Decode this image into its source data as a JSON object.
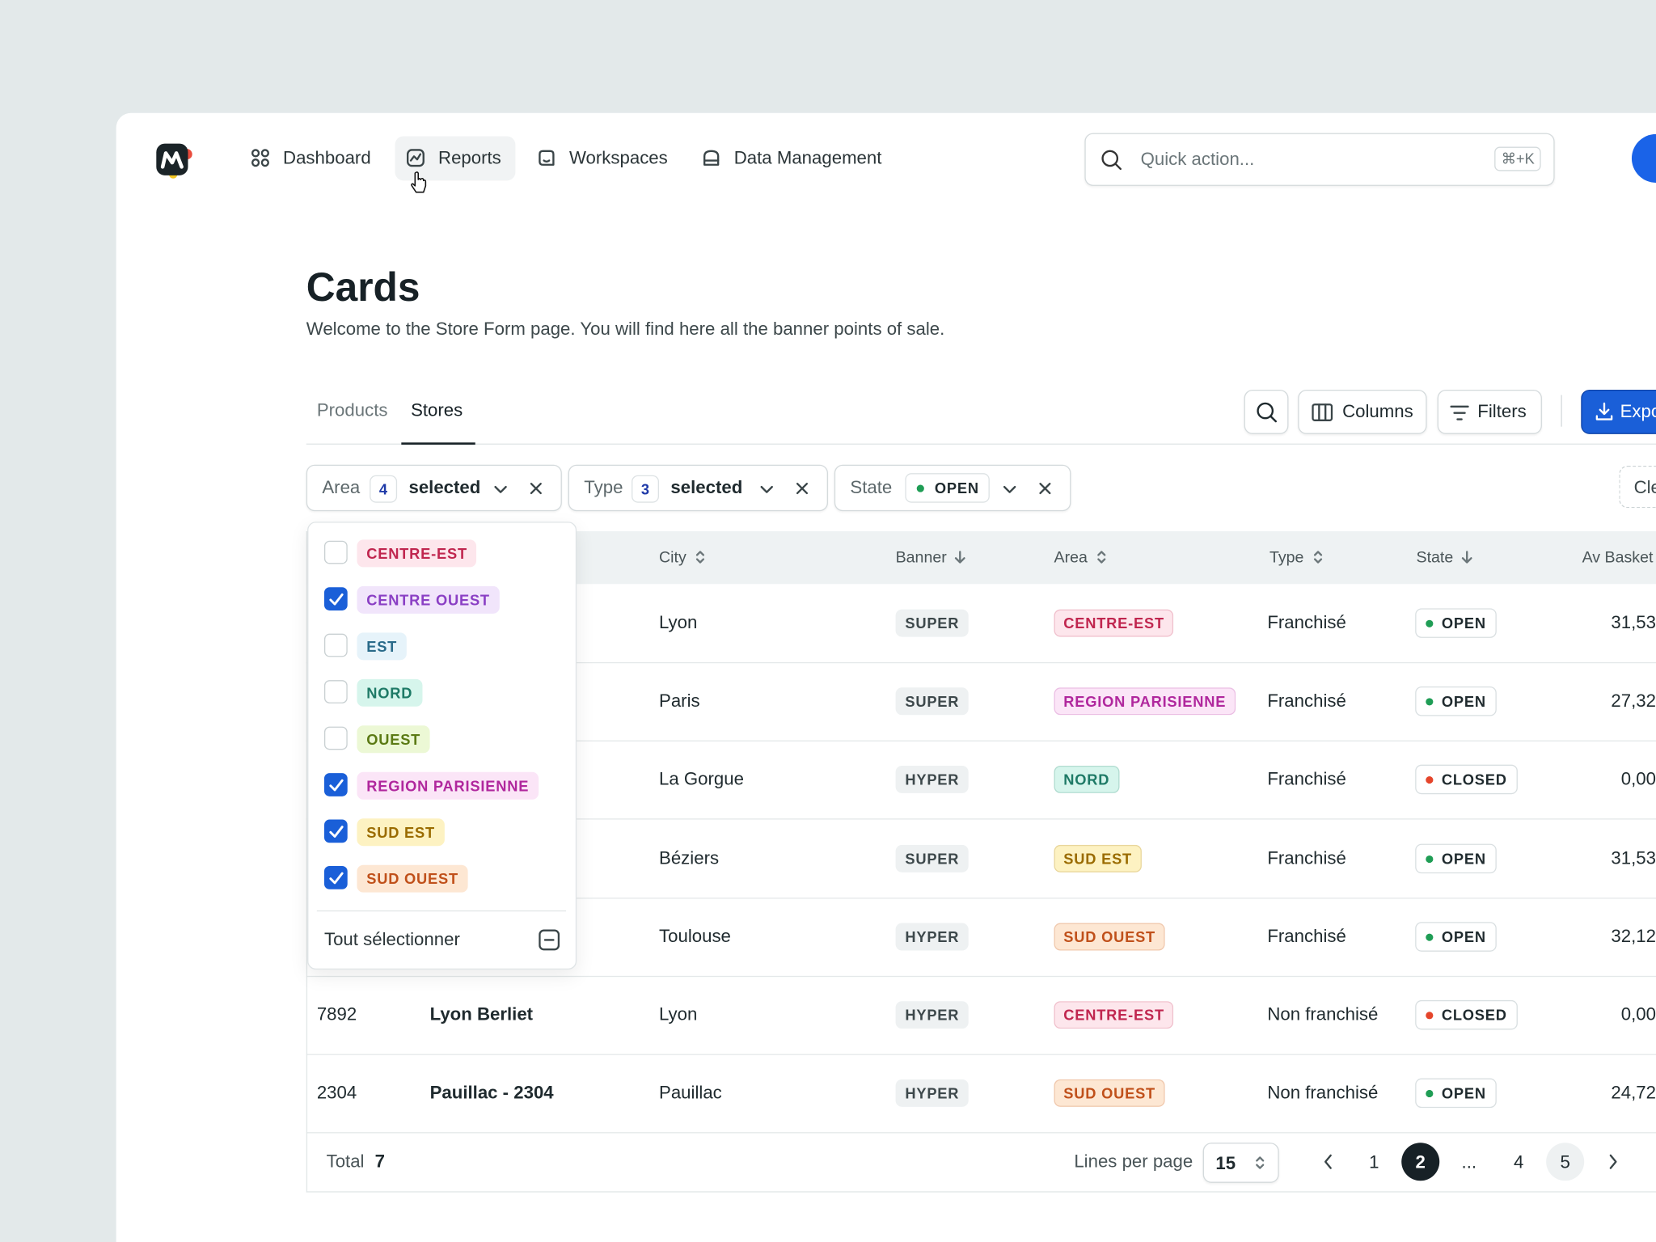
{
  "nav": {
    "items": [
      "Dashboard",
      "Reports",
      "Workspaces",
      "Data Management"
    ],
    "search_placeholder": "Quick action...",
    "shortcut": "⌘+K"
  },
  "page": {
    "title": "Cards",
    "subtitle": "Welcome to the Store Form page. You will find here all the banner points of sale."
  },
  "tabs": [
    "Products",
    "Stores"
  ],
  "toolbar": {
    "columns": "Columns",
    "filters": "Filters",
    "export": "Export",
    "clear": "Clear"
  },
  "filters": [
    {
      "label": "Area",
      "count": 4,
      "value": "selected"
    },
    {
      "label": "Type",
      "count": 3,
      "value": "selected"
    },
    {
      "label": "State",
      "value": "OPEN"
    }
  ],
  "dropdown": {
    "options": [
      {
        "label": "CENTRE-EST",
        "checked": false,
        "bg": "#fde6ec",
        "fg": "#c0264f"
      },
      {
        "label": "CENTRE OUEST",
        "checked": true,
        "bg": "#f1e5fb",
        "fg": "#8a3fc4"
      },
      {
        "label": "EST",
        "checked": false,
        "bg": "#e6f3fa",
        "fg": "#2a6b8a"
      },
      {
        "label": "NORD",
        "checked": false,
        "bg": "#d6f5ec",
        "fg": "#1e7a66"
      },
      {
        "label": "OUEST",
        "checked": false,
        "bg": "#ecf8d5",
        "fg": "#5b7a14"
      },
      {
        "label": "REGION PARISIENNE",
        "checked": true,
        "bg": "#fbe5f7",
        "fg": "#b0279d"
      },
      {
        "label": "SUD EST",
        "checked": true,
        "bg": "#fdf2c2",
        "fg": "#9a6b00"
      },
      {
        "label": "SUD OUEST",
        "checked": true,
        "bg": "#fde7d3",
        "fg": "#c0501a"
      }
    ],
    "select_all": "Tout sélectionner"
  },
  "table": {
    "headers": [
      "City",
      "Banner",
      "Area",
      "Type",
      "State",
      "Av Basket"
    ],
    "rows": [
      {
        "id": null,
        "name": null,
        "city": "Lyon",
        "banner": "SUPER",
        "area": "CENTRE-EST",
        "type": "Franchisé",
        "state": "OPEN",
        "state_color": "#1f9d55",
        "basket": "31,53"
      },
      {
        "id": null,
        "name": null,
        "city": "Paris",
        "banner": "SUPER",
        "area": "REGION PARISIENNE",
        "type": "Franchisé",
        "state": "OPEN",
        "state_color": "#1f9d55",
        "basket": "27,32"
      },
      {
        "id": null,
        "name": null,
        "city": "La Gorgue",
        "banner": "HYPER",
        "area": "NORD",
        "type": "Franchisé",
        "state": "CLOSED",
        "state_color": "#e5452b",
        "basket": "0,00"
      },
      {
        "id": null,
        "name": null,
        "city": "Béziers",
        "banner": "SUPER",
        "area": "SUD EST",
        "type": "Franchisé",
        "state": "OPEN",
        "state_color": "#1f9d55",
        "basket": "31,53"
      },
      {
        "id": null,
        "name": null,
        "city": "Toulouse",
        "banner": "HYPER",
        "area": "SUD OUEST",
        "type": "Franchisé",
        "state": "OPEN",
        "state_color": "#1f9d55",
        "basket": "32,12"
      },
      {
        "id": 7892,
        "name": "Lyon Berliet",
        "city": "Lyon",
        "banner": "HYPER",
        "area": "CENTRE-EST",
        "type": "Non franchisé",
        "state": "CLOSED",
        "state_color": "#e5452b",
        "basket": "0,00"
      },
      {
        "id": 2304,
        "name": "Pauillac - 2304",
        "city": "Pauillac",
        "banner": "HYPER",
        "area": "SUD OUEST",
        "type": "Non franchisé",
        "state": "OPEN",
        "state_color": "#1f9d55",
        "basket": "24,72"
      }
    ]
  },
  "footer": {
    "total_label": "Total",
    "total": 7,
    "lines_label": "Lines per page",
    "lines": 15,
    "pages": [
      1,
      2,
      "...",
      4,
      5
    ],
    "current": 2
  }
}
